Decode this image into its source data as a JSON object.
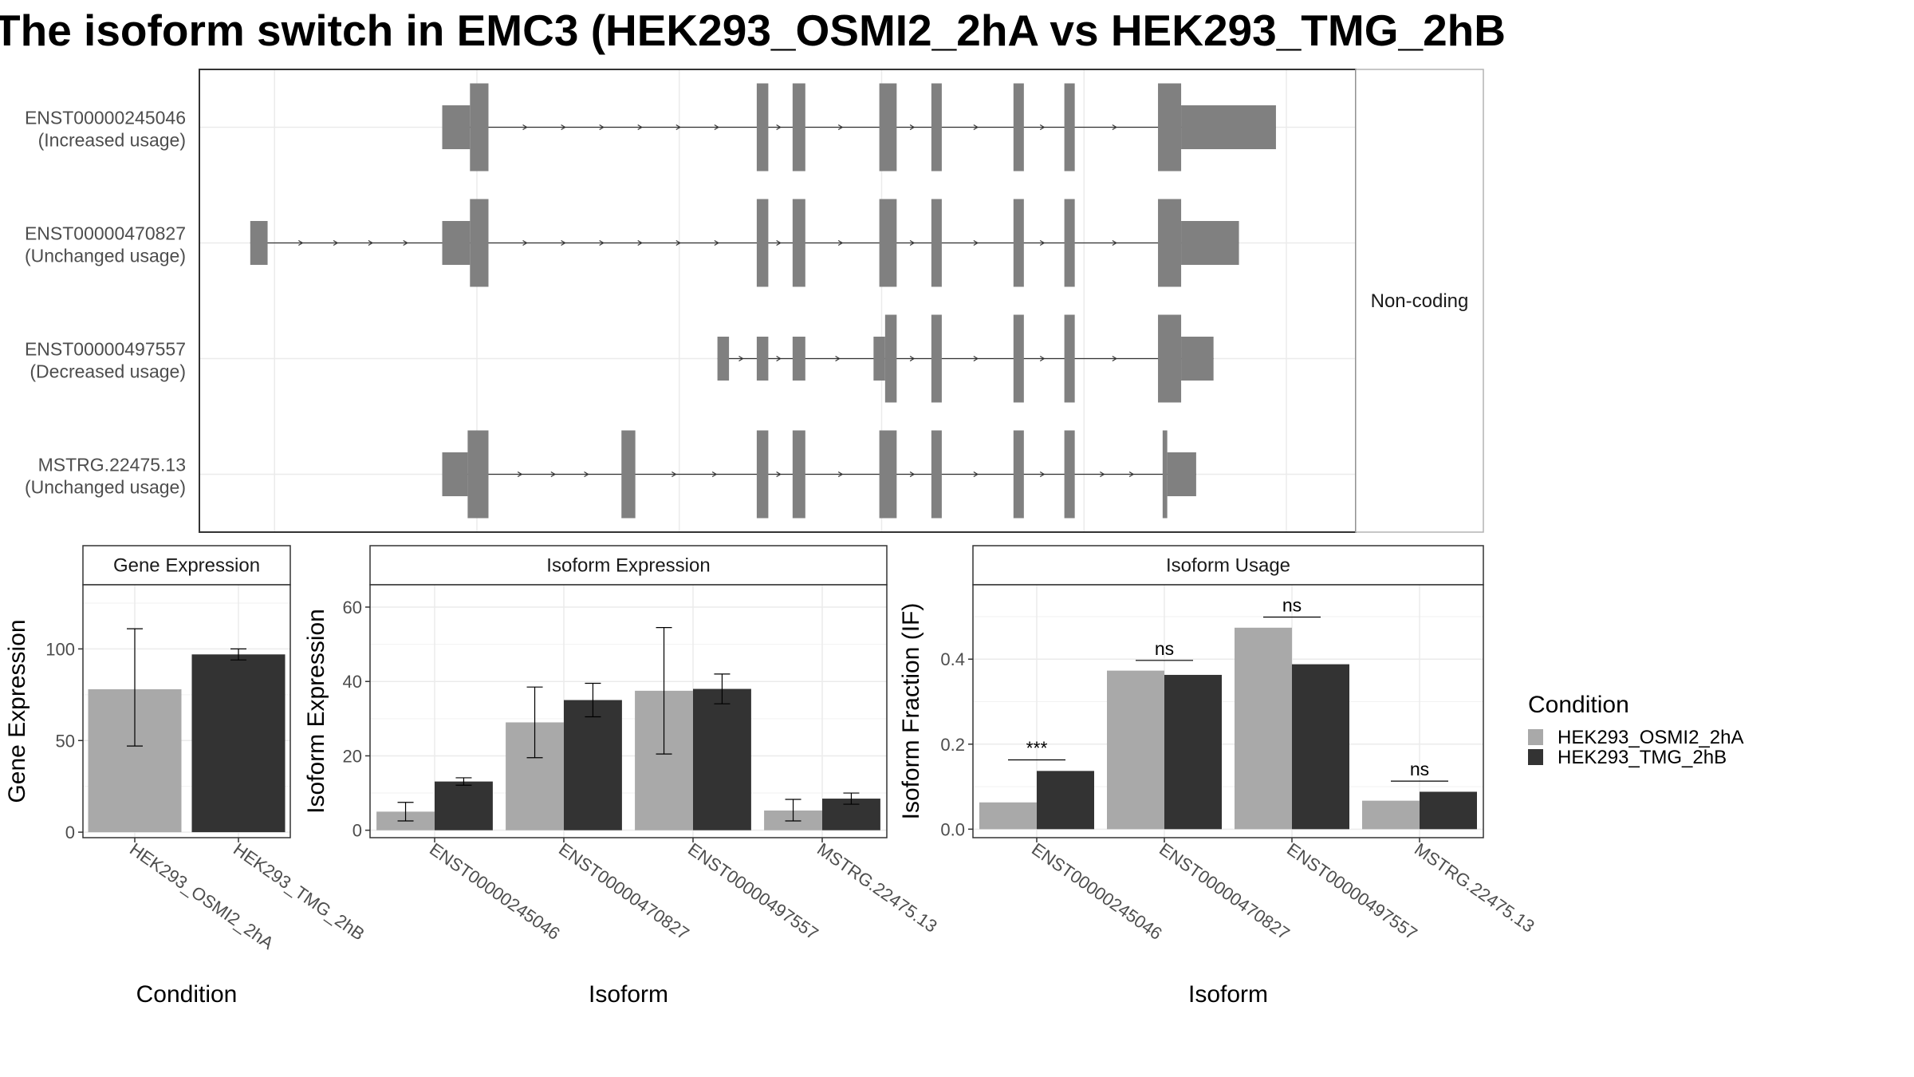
{
  "title": "The isoform switch in EMC3 (HEK293_OSMI2_2hA vs HEK293_TMG_2hB",
  "colors": {
    "condA": "#a9a9a9",
    "condB": "#333333",
    "exon": "#808080",
    "grid": "#ebebeb",
    "panel_border": "#333333"
  },
  "chart_data": [
    {
      "type": "transcript-structure",
      "strip_label": "Non-coding",
      "x_range": [
        0,
        1000
      ],
      "transcripts": [
        {
          "name": "ENST00000245046",
          "status": "(Increased usage)",
          "exons": [
            [
              210,
              234,
              "thin"
            ],
            [
              234,
              250,
              "thick"
            ],
            [
              482,
              492,
              "thick"
            ],
            [
              513,
              524,
              "thick"
            ],
            [
              588,
              603,
              "thick"
            ],
            [
              633,
              642,
              "thick"
            ],
            [
              704,
              713,
              "thick"
            ],
            [
              748,
              757,
              "thick"
            ],
            [
              829,
              849,
              "thick"
            ],
            [
              849,
              931,
              "thin"
            ]
          ]
        },
        {
          "name": "ENST00000470827",
          "status": "(Unchanged usage)",
          "exons": [
            [
              44,
              59,
              "thin"
            ],
            [
              210,
              234,
              "thin"
            ],
            [
              234,
              250,
              "thick"
            ],
            [
              482,
              492,
              "thick"
            ],
            [
              513,
              524,
              "thick"
            ],
            [
              588,
              603,
              "thick"
            ],
            [
              633,
              642,
              "thick"
            ],
            [
              704,
              713,
              "thick"
            ],
            [
              748,
              757,
              "thick"
            ],
            [
              829,
              849,
              "thick"
            ],
            [
              849,
              899,
              "thin"
            ]
          ]
        },
        {
          "name": "ENST00000497557",
          "status": "(Decreased usage)",
          "exons": [
            [
              448,
              458,
              "thin"
            ],
            [
              482,
              492,
              "thin"
            ],
            [
              513,
              524,
              "thin"
            ],
            [
              583,
              593,
              "thin"
            ],
            [
              593,
              603,
              "thick"
            ],
            [
              633,
              642,
              "thick"
            ],
            [
              704,
              713,
              "thick"
            ],
            [
              748,
              757,
              "thick"
            ],
            [
              829,
              849,
              "thick"
            ],
            [
              849,
              877,
              "thin"
            ]
          ]
        },
        {
          "name": "MSTRG.22475.13",
          "status": "(Unchanged usage)",
          "exons": [
            [
              210,
              232,
              "thin"
            ],
            [
              232,
              250,
              "thick"
            ],
            [
              365,
              377,
              "thick"
            ],
            [
              482,
              492,
              "thick"
            ],
            [
              513,
              524,
              "thick"
            ],
            [
              588,
              603,
              "thick"
            ],
            [
              633,
              642,
              "thick"
            ],
            [
              704,
              713,
              "thick"
            ],
            [
              748,
              757,
              "thick"
            ],
            [
              833,
              837,
              "thick"
            ],
            [
              837,
              862,
              "thin"
            ]
          ]
        }
      ]
    },
    {
      "type": "bar",
      "title": "Gene Expression",
      "xlabel": "Condition",
      "ylabel": "Gene Expression",
      "categories": [
        "HEK293_OSMI2_2hA",
        "HEK293_TMG_2hB"
      ],
      "values": [
        78,
        97
      ],
      "error_low": [
        47,
        94
      ],
      "error_high": [
        111,
        100
      ],
      "ylim": [
        -3,
        135
      ],
      "yticks": [
        0,
        50,
        100
      ]
    },
    {
      "type": "bar",
      "title": "Isoform Expression",
      "xlabel": "Isoform",
      "ylabel": "Isoform Expression",
      "categories": [
        "ENST00000245046",
        "ENST00000470827",
        "ENST00000497557",
        "MSTRG.22475.13"
      ],
      "series": [
        {
          "name": "HEK293_OSMI2_2hA",
          "values": [
            5,
            29,
            37.5,
            5.3
          ],
          "error_low": [
            2.5,
            19.5,
            20.5,
            2.5
          ],
          "error_high": [
            7.5,
            38.5,
            54.5,
            8.3
          ]
        },
        {
          "name": "HEK293_TMG_2hB",
          "values": [
            13.1,
            35,
            38,
            8.5
          ],
          "error_low": [
            12.1,
            30.5,
            34,
            7
          ],
          "error_high": [
            14.1,
            39.5,
            42,
            10
          ]
        }
      ],
      "ylim": [
        -2,
        66
      ],
      "yticks": [
        0,
        20,
        40,
        60
      ]
    },
    {
      "type": "bar",
      "title": "Isoform Usage",
      "xlabel": "Isoform",
      "ylabel": "Isoform Fraction (IF)",
      "categories": [
        "ENST00000245046",
        "ENST00000470827",
        "ENST00000497557",
        "MSTRG.22475.13"
      ],
      "series": [
        {
          "name": "HEK293_OSMI2_2hA",
          "values": [
            0.063,
            0.373,
            0.474,
            0.067
          ]
        },
        {
          "name": "HEK293_TMG_2hB",
          "values": [
            0.137,
            0.363,
            0.388,
            0.088
          ]
        }
      ],
      "significance": [
        "***",
        "ns",
        "ns",
        "ns"
      ],
      "significance_y": [
        0.163,
        0.397,
        0.499,
        0.113
      ],
      "ylim": [
        -0.02,
        0.575
      ],
      "yticks": [
        0.0,
        0.2,
        0.4
      ]
    }
  ],
  "legend": {
    "title": "Condition",
    "items": [
      "HEK293_OSMI2_2hA",
      "HEK293_TMG_2hB"
    ]
  }
}
